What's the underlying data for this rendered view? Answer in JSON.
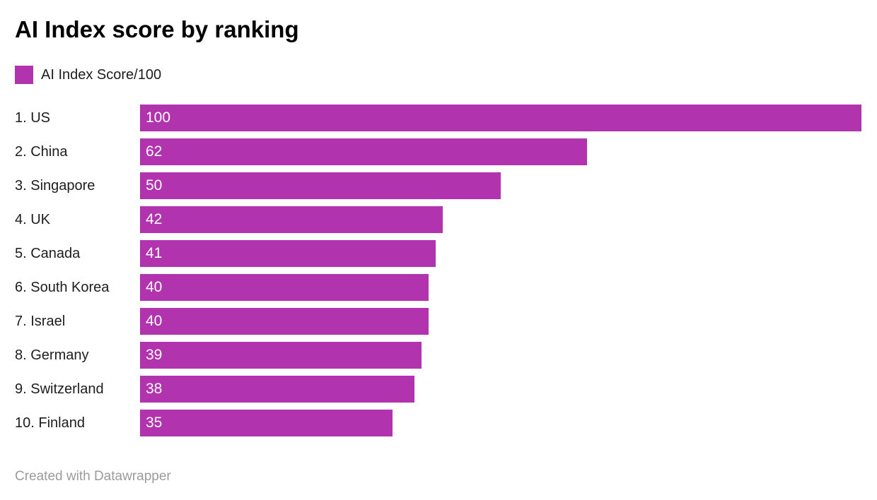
{
  "header": {
    "title": "AI Index score by ranking"
  },
  "legend": {
    "label": "AI Index Score/100",
    "swatch_color": "#b233ae"
  },
  "footer": {
    "attribution": "Created with Datawrapper"
  },
  "colors": {
    "bar": "#b233ae",
    "value_label": "#ffffff",
    "category_label": "#1d1d1d",
    "footer_text": "#9b9b9b",
    "background": "#ffffff"
  },
  "chart_data": {
    "type": "bar",
    "orientation": "horizontal",
    "title": "AI Index score by ranking",
    "legend_entries": [
      {
        "label": "AI Index Score/100",
        "color": "#b233ae"
      }
    ],
    "legend_position": "top-left",
    "categories": [
      "1. US",
      "2. China",
      "3. Singapore",
      "4. UK",
      "5. Canada",
      "6. South Korea",
      "7. Israel",
      "8. Germany",
      "9. Switzerland",
      "10. Finland"
    ],
    "values": [
      100,
      62,
      50,
      42,
      41,
      40,
      40,
      39,
      38,
      35
    ],
    "xlim": [
      0,
      100
    ],
    "grid": false,
    "value_labels": "inside-start",
    "attribution": "Created with Datawrapper"
  }
}
